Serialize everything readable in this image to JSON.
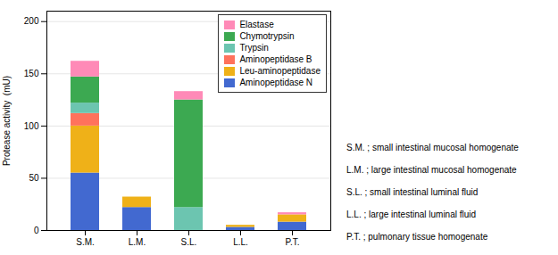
{
  "chart_data": {
    "type": "bar",
    "stacked": true,
    "categories": [
      "S.M.",
      "L.M.",
      "S.L.",
      "L.L.",
      "P.T."
    ],
    "series": [
      {
        "name": "Aminopeptidase N",
        "values": [
          55,
          22,
          0,
          3,
          8
        ]
      },
      {
        "name": "Leu-aminopeptidase",
        "values": [
          45,
          10,
          0,
          2,
          7
        ]
      },
      {
        "name": "Aminopeptidase B",
        "values": [
          12,
          0,
          0,
          0,
          0
        ]
      },
      {
        "name": "Trypsin",
        "values": [
          10,
          0,
          22,
          0,
          0
        ]
      },
      {
        "name": "Chymotrypsin",
        "values": [
          25,
          0,
          103,
          0,
          0
        ]
      },
      {
        "name": "Elastase",
        "values": [
          15,
          0,
          8,
          0,
          2
        ]
      }
    ],
    "ylabel": "Protease activity  (mU)",
    "ylim": [
      0,
      210
    ],
    "yticks": [
      0,
      50,
      100,
      150,
      200
    ],
    "grid": true,
    "legend": "upper right",
    "annotations": [
      "S.M. ; small intestinal mucosal homogenate",
      "L.M. ; large intestinal mucosal homogenate",
      "S.L. ; small intestinal luminal fluid",
      "L.L. ; large intestinal luminal fluid",
      "P.T. ; pulmonary tissue homogenate"
    ]
  }
}
